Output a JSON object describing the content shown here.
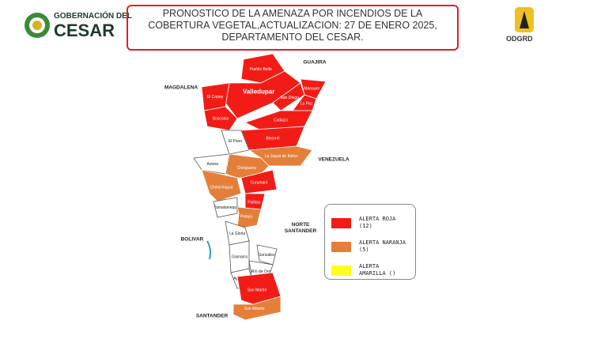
{
  "header": {
    "org_line1": "GOBERNACIÓN DEL",
    "org_line2": "CESAR",
    "title": "PRONOSTICO DE LA AMENAZA POR INCENDIOS DE LA COBERTURA VEGETAL,ACTUALIZACION: 27 DE ENERO 2025, DEPARTAMENTO DEL CESAR.",
    "logo_right": "ODGRD"
  },
  "map": {
    "regions": [
      "GUAJIRA",
      "MAGDALENA",
      "VENEZUELA",
      "NORTE SANTANDER",
      "BOLIVAR",
      "SANTANDER"
    ],
    "municipalities": [
      {
        "label": "Pueblo Bello",
        "color": "#f21c17"
      },
      {
        "label": "Valledupar",
        "color": "#f21c17"
      },
      {
        "label": "El Copey",
        "color": "#f21c17"
      },
      {
        "label": "Bosconia",
        "color": "#f21c17"
      },
      {
        "label": "San Diego",
        "color": "#f21c17"
      },
      {
        "label": "Manaure",
        "color": "#f21c17"
      },
      {
        "label": "La Paz",
        "color": "#f21c17"
      },
      {
        "label": "Codazzi",
        "color": "#f21c17"
      },
      {
        "label": "Becerril",
        "color": "#f21c17"
      },
      {
        "label": "El Paso",
        "color": "#ffffff"
      },
      {
        "label": "La Jagua de Ibirico",
        "color": "#e47f3a"
      },
      {
        "label": "Astrea",
        "color": "#ffffff"
      },
      {
        "label": "Chiriguana",
        "color": "#e47f3a"
      },
      {
        "label": "Chimichagua",
        "color": "#e47f3a"
      },
      {
        "label": "Curumaní",
        "color": "#f21c17"
      },
      {
        "label": "Tamalameque",
        "color": "#ffffff"
      },
      {
        "label": "Pailitas",
        "color": "#f21c17"
      },
      {
        "label": "Pelaya",
        "color": "#e47f3a"
      },
      {
        "label": "La Gloria",
        "color": "#ffffff"
      },
      {
        "label": "Gamarra",
        "color": "#ffffff"
      },
      {
        "label": "González",
        "color": "#ffffff"
      },
      {
        "label": "Aguachica",
        "color": "#ffffff"
      },
      {
        "label": "Río de Oro",
        "color": "#ffffff"
      },
      {
        "label": "San Martín",
        "color": "#f21c17"
      },
      {
        "label": "San Alberto",
        "color": "#e47f3a"
      }
    ]
  },
  "legend": [
    {
      "label": "ALERTA ROJA (12)",
      "color": "#f21c17"
    },
    {
      "label": "ALERTA NARANJA (5)",
      "color": "#e47f3a"
    },
    {
      "label": "ALERTA AMARILLA ()",
      "color": "#ffff22"
    }
  ]
}
